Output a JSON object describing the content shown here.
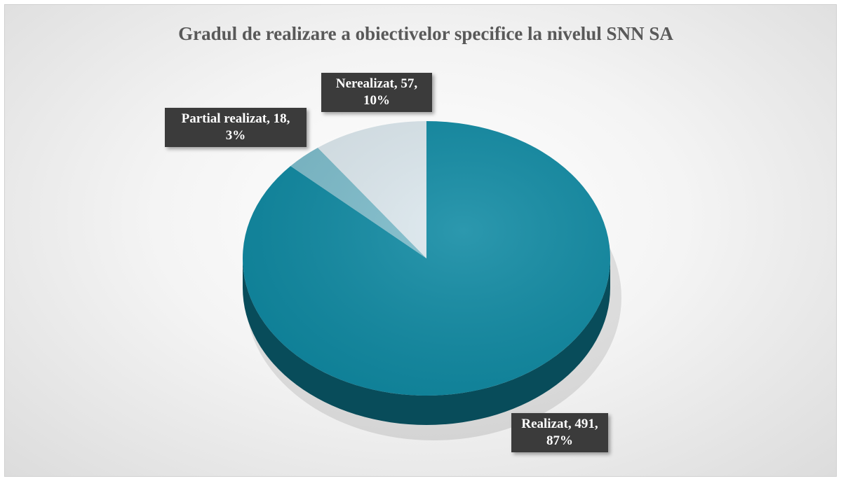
{
  "chart_data": {
    "type": "pie",
    "title": "Gradul de realizare a obiectivelor specifice la nivelul SNN SA",
    "categories": [
      "Realizat",
      "Partial realizat",
      "Nerealizat"
    ],
    "values": [
      491,
      18,
      57
    ],
    "value_labels": [
      "Realizat, 491, 87%",
      "Partial realizat, 18, 3%",
      "Nerealizat, 57, 10%"
    ],
    "colors": [
      "#0f8aa3",
      "#7dbdcc",
      "#dde9ef"
    ]
  }
}
